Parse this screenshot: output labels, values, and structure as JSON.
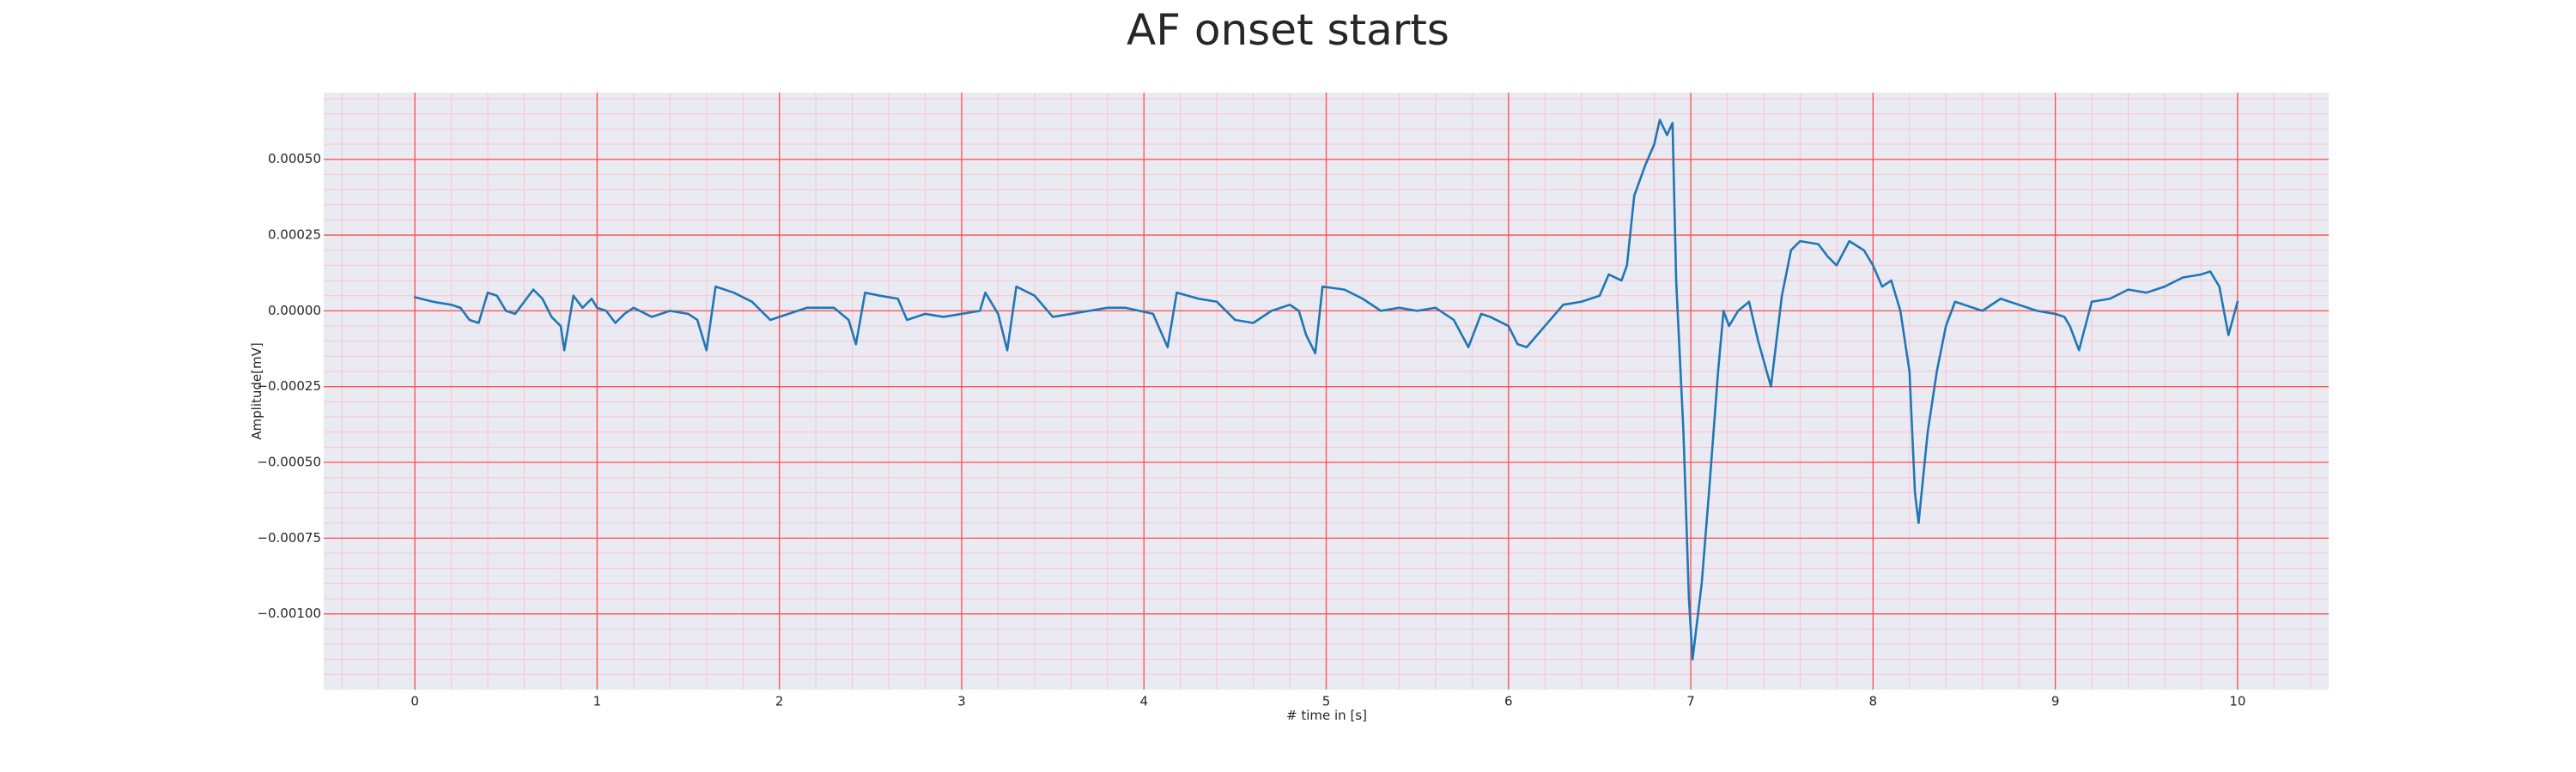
{
  "chart_data": {
    "type": "line",
    "title": "AF onset starts",
    "xlabel": "# time in [s]",
    "ylabel": "Amplitude[mV]",
    "xlim": [
      -0.5,
      10.5
    ],
    "ylim": [
      -0.00125,
      0.00072
    ],
    "xticks": [
      0,
      1,
      2,
      3,
      4,
      5,
      6,
      7,
      8,
      9,
      10
    ],
    "yticks": [
      {
        "value": -0.001,
        "label": "−0.00100"
      },
      {
        "value": -0.00075,
        "label": "−0.00075"
      },
      {
        "value": -0.0005,
        "label": "−0.00050"
      },
      {
        "value": -0.00025,
        "label": "−0.00025"
      },
      {
        "value": 0,
        "label": "0.00000"
      },
      {
        "value": 0.00025,
        "label": "0.00025"
      },
      {
        "value": 0.0005,
        "label": "0.00050"
      }
    ],
    "minor_xticks": [
      -0.4,
      -0.2,
      0,
      0.2,
      0.4,
      0.6,
      0.8,
      1,
      1.2,
      1.4,
      1.6,
      1.8,
      2,
      2.2,
      2.4,
      2.6,
      2.8,
      3,
      3.2,
      3.4,
      3.6,
      3.8,
      4,
      4.2,
      4.4,
      4.6,
      4.8,
      5,
      5.2,
      5.4,
      5.6,
      5.8,
      6,
      6.2,
      6.4,
      6.6,
      6.8,
      7,
      7.2,
      7.4,
      7.6,
      7.8,
      8,
      8.2,
      8.4,
      8.6,
      8.8,
      9,
      9.2,
      9.4,
      9.6,
      9.8,
      10,
      10.2,
      10.4
    ],
    "minor_yticks": [
      -0.0012,
      -0.00115,
      -0.0011,
      -0.00105,
      -0.001,
      -0.00095,
      -0.0009,
      -0.00085,
      -0.0008,
      -0.00075,
      -0.0007,
      -0.00065,
      -0.0006,
      -0.00055,
      -0.0005,
      -0.00045,
      -0.0004,
      -0.00035,
      -0.0003,
      -0.00025,
      -0.0002,
      -0.00015,
      -0.0001,
      -5e-05,
      0,
      5e-05,
      0.0001,
      0.00015,
      0.0002,
      0.00025,
      0.0003,
      0.00035,
      0.0004,
      0.00045,
      0.0005,
      0.00055,
      0.0006,
      0.00065,
      0.0007
    ],
    "grid": true,
    "grid_color": "#ff4d4d",
    "minor_grid": true,
    "minor_grid_color": "#f7c6d0",
    "background": "#eaeaf2",
    "series": [
      {
        "color": "#1f77b4",
        "x": [
          0,
          0.1,
          0.2,
          0.25,
          0.3,
          0.35,
          0.4,
          0.45,
          0.5,
          0.55,
          0.6,
          0.65,
          0.7,
          0.75,
          0.8,
          0.82,
          0.87,
          0.92,
          0.97,
          1.0,
          1.05,
          1.1,
          1.15,
          1.2,
          1.3,
          1.4,
          1.5,
          1.55,
          1.6,
          1.65,
          1.75,
          1.85,
          1.95,
          2.05,
          2.15,
          2.3,
          2.38,
          2.42,
          2.47,
          2.55,
          2.65,
          2.7,
          2.8,
          2.9,
          3.0,
          3.1,
          3.13,
          3.2,
          3.25,
          3.3,
          3.4,
          3.5,
          3.6,
          3.7,
          3.8,
          3.9,
          4.05,
          4.13,
          4.18,
          4.3,
          4.4,
          4.5,
          4.6,
          4.7,
          4.8,
          4.85,
          4.89,
          4.94,
          4.98,
          5.1,
          5.2,
          5.3,
          5.4,
          5.5,
          5.6,
          5.7,
          5.78,
          5.85,
          5.9,
          6.0,
          6.05,
          6.1,
          6.2,
          6.3,
          6.4,
          6.5,
          6.55,
          6.62,
          6.65,
          6.69,
          6.75,
          6.8,
          6.83,
          6.87,
          6.9,
          6.92,
          6.96,
          6.99,
          7.01,
          7.06,
          7.1,
          7.15,
          7.18,
          7.21,
          7.26,
          7.32,
          7.37,
          7.44,
          7.5,
          7.55,
          7.6,
          7.7,
          7.75,
          7.8,
          7.87,
          7.95,
          8.0,
          8.05,
          8.1,
          8.15,
          8.2,
          8.23,
          8.25,
          8.3,
          8.35,
          8.4,
          8.45,
          8.5,
          8.6,
          8.7,
          8.8,
          8.9,
          9.0,
          9.05,
          9.08,
          9.13,
          9.2,
          9.3,
          9.4,
          9.5,
          9.6,
          9.7,
          9.8,
          9.85,
          9.9,
          9.95,
          10.0
        ],
        "values": [
          4.5e-05,
          3e-05,
          2e-05,
          1e-05,
          -3e-05,
          -4e-05,
          6e-05,
          5e-05,
          0,
          -1e-05,
          3e-05,
          7e-05,
          4e-05,
          -2e-05,
          -5e-05,
          -0.00013,
          5e-05,
          1e-05,
          4e-05,
          1e-05,
          0,
          -4e-05,
          -1e-05,
          1e-05,
          -2e-05,
          0,
          -1e-05,
          -3e-05,
          -0.00013,
          8e-05,
          6e-05,
          3e-05,
          -3e-05,
          -1e-05,
          1e-05,
          1e-05,
          -3e-05,
          -0.00011,
          6e-05,
          5e-05,
          4e-05,
          -3e-05,
          -1e-05,
          -2e-05,
          -1e-05,
          0,
          6e-05,
          -1e-05,
          -0.00013,
          8e-05,
          5e-05,
          -2e-05,
          -1e-05,
          0,
          1e-05,
          1e-05,
          -1e-05,
          -0.00012,
          6e-05,
          4e-05,
          3e-05,
          -3e-05,
          -4e-05,
          0,
          2e-05,
          0,
          -8e-05,
          -0.00014,
          8e-05,
          7e-05,
          4e-05,
          0,
          1e-05,
          0,
          1e-05,
          -3e-05,
          -0.00012,
          -1e-05,
          -2e-05,
          -5e-05,
          -0.00011,
          -0.00012,
          -5e-05,
          2e-05,
          3e-05,
          5e-05,
          0.00012,
          0.0001,
          0.00015,
          0.00038,
          0.00048,
          0.00055,
          0.00063,
          0.00058,
          0.00062,
          0.0001,
          -0.0004,
          -0.00095,
          -0.00115,
          -0.0009,
          -0.0006,
          -0.0002,
          0,
          -5e-05,
          0,
          3e-05,
          -0.0001,
          -0.00025,
          5e-05,
          0.0002,
          0.00023,
          0.00022,
          0.00018,
          0.00015,
          0.00023,
          0.0002,
          0.00015,
          8e-05,
          0.0001,
          0,
          -0.0002,
          -0.0006,
          -0.0007,
          -0.0004,
          -0.0002,
          -5e-05,
          3e-05,
          2e-05,
          0,
          4e-05,
          2e-05,
          0,
          -1e-05,
          -2e-05,
          -5e-05,
          -0.00013,
          3e-05,
          4e-05,
          7e-05,
          6e-05,
          8e-05,
          0.00011,
          0.00012,
          0.00013,
          8e-05,
          -8e-05,
          3e-05
        ]
      }
    ]
  }
}
